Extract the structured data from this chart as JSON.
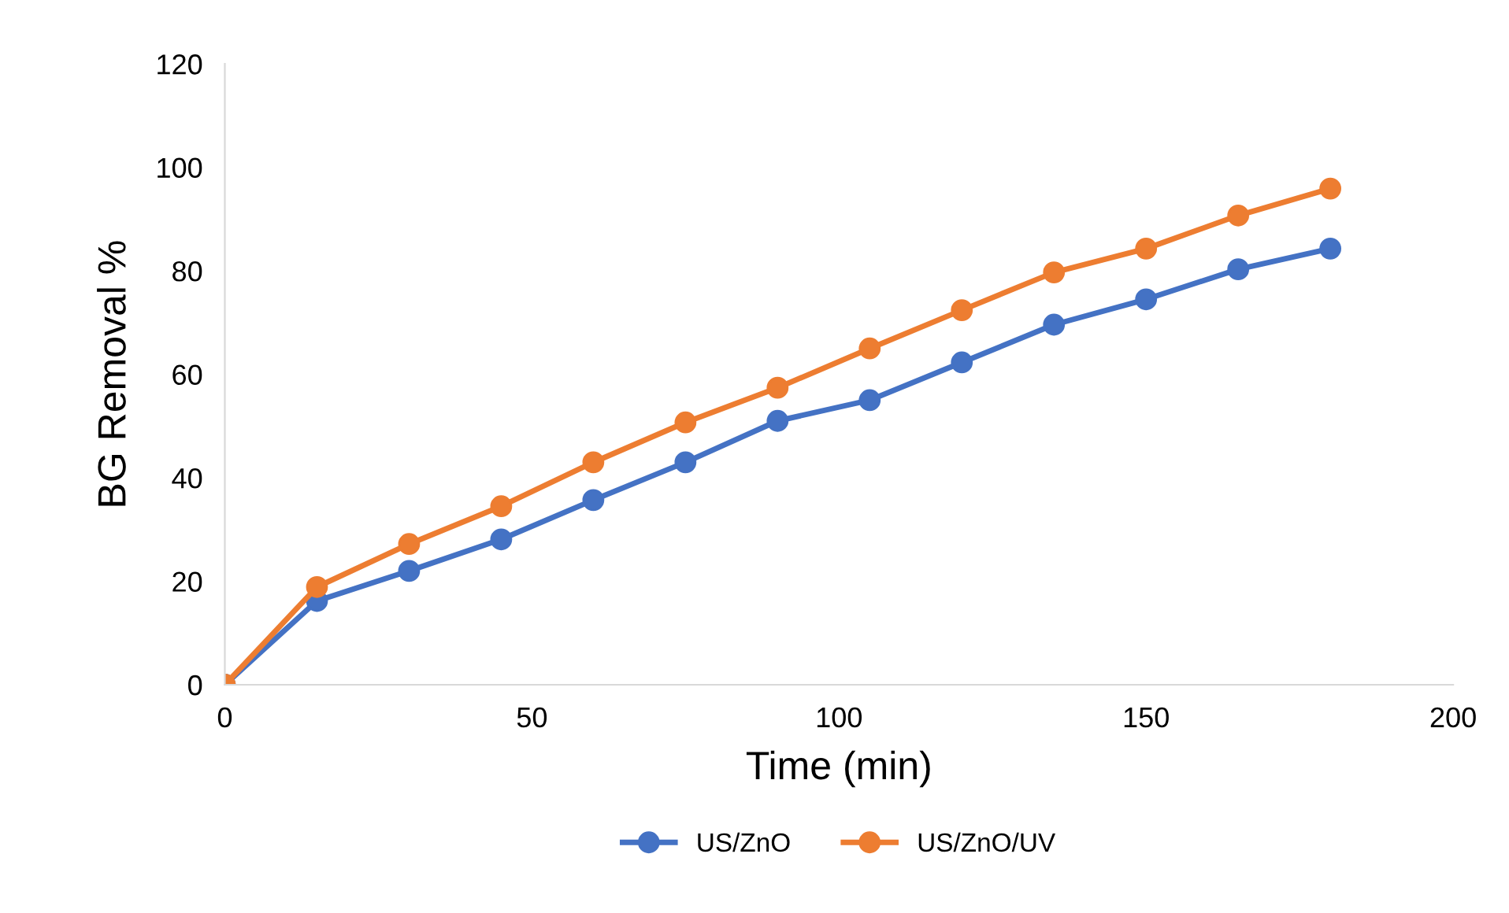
{
  "chart_data": {
    "type": "line",
    "xlabel": "Time (min)",
    "ylabel": "BG Removal %",
    "xlim": [
      0,
      200
    ],
    "xticks": [
      0,
      50,
      100,
      150,
      200
    ],
    "ylim": [
      0,
      120
    ],
    "yticks": [
      0,
      20,
      40,
      60,
      80,
      100,
      120
    ],
    "marker": "circle",
    "legend": "bottom",
    "series": [
      {
        "name": "US/ZnO",
        "color": "#4472c4",
        "x": [
          0,
          15,
          30,
          45,
          60,
          75,
          90,
          105,
          120,
          135,
          150,
          165,
          180
        ],
        "values": [
          0,
          16.2,
          22,
          28.1,
          35.7,
          43,
          51,
          55,
          62.3,
          69.6,
          74.5,
          80.3,
          84.3
        ]
      },
      {
        "name": "US/ZnO/UV",
        "color": "#ed7d31",
        "x": [
          0,
          15,
          30,
          45,
          60,
          75,
          90,
          105,
          120,
          135,
          150,
          165,
          180
        ],
        "values": [
          0,
          18.9,
          27.2,
          34.5,
          43,
          50.7,
          57.4,
          65,
          72.4,
          79.7,
          84.3,
          90.7,
          95.9
        ]
      }
    ]
  }
}
